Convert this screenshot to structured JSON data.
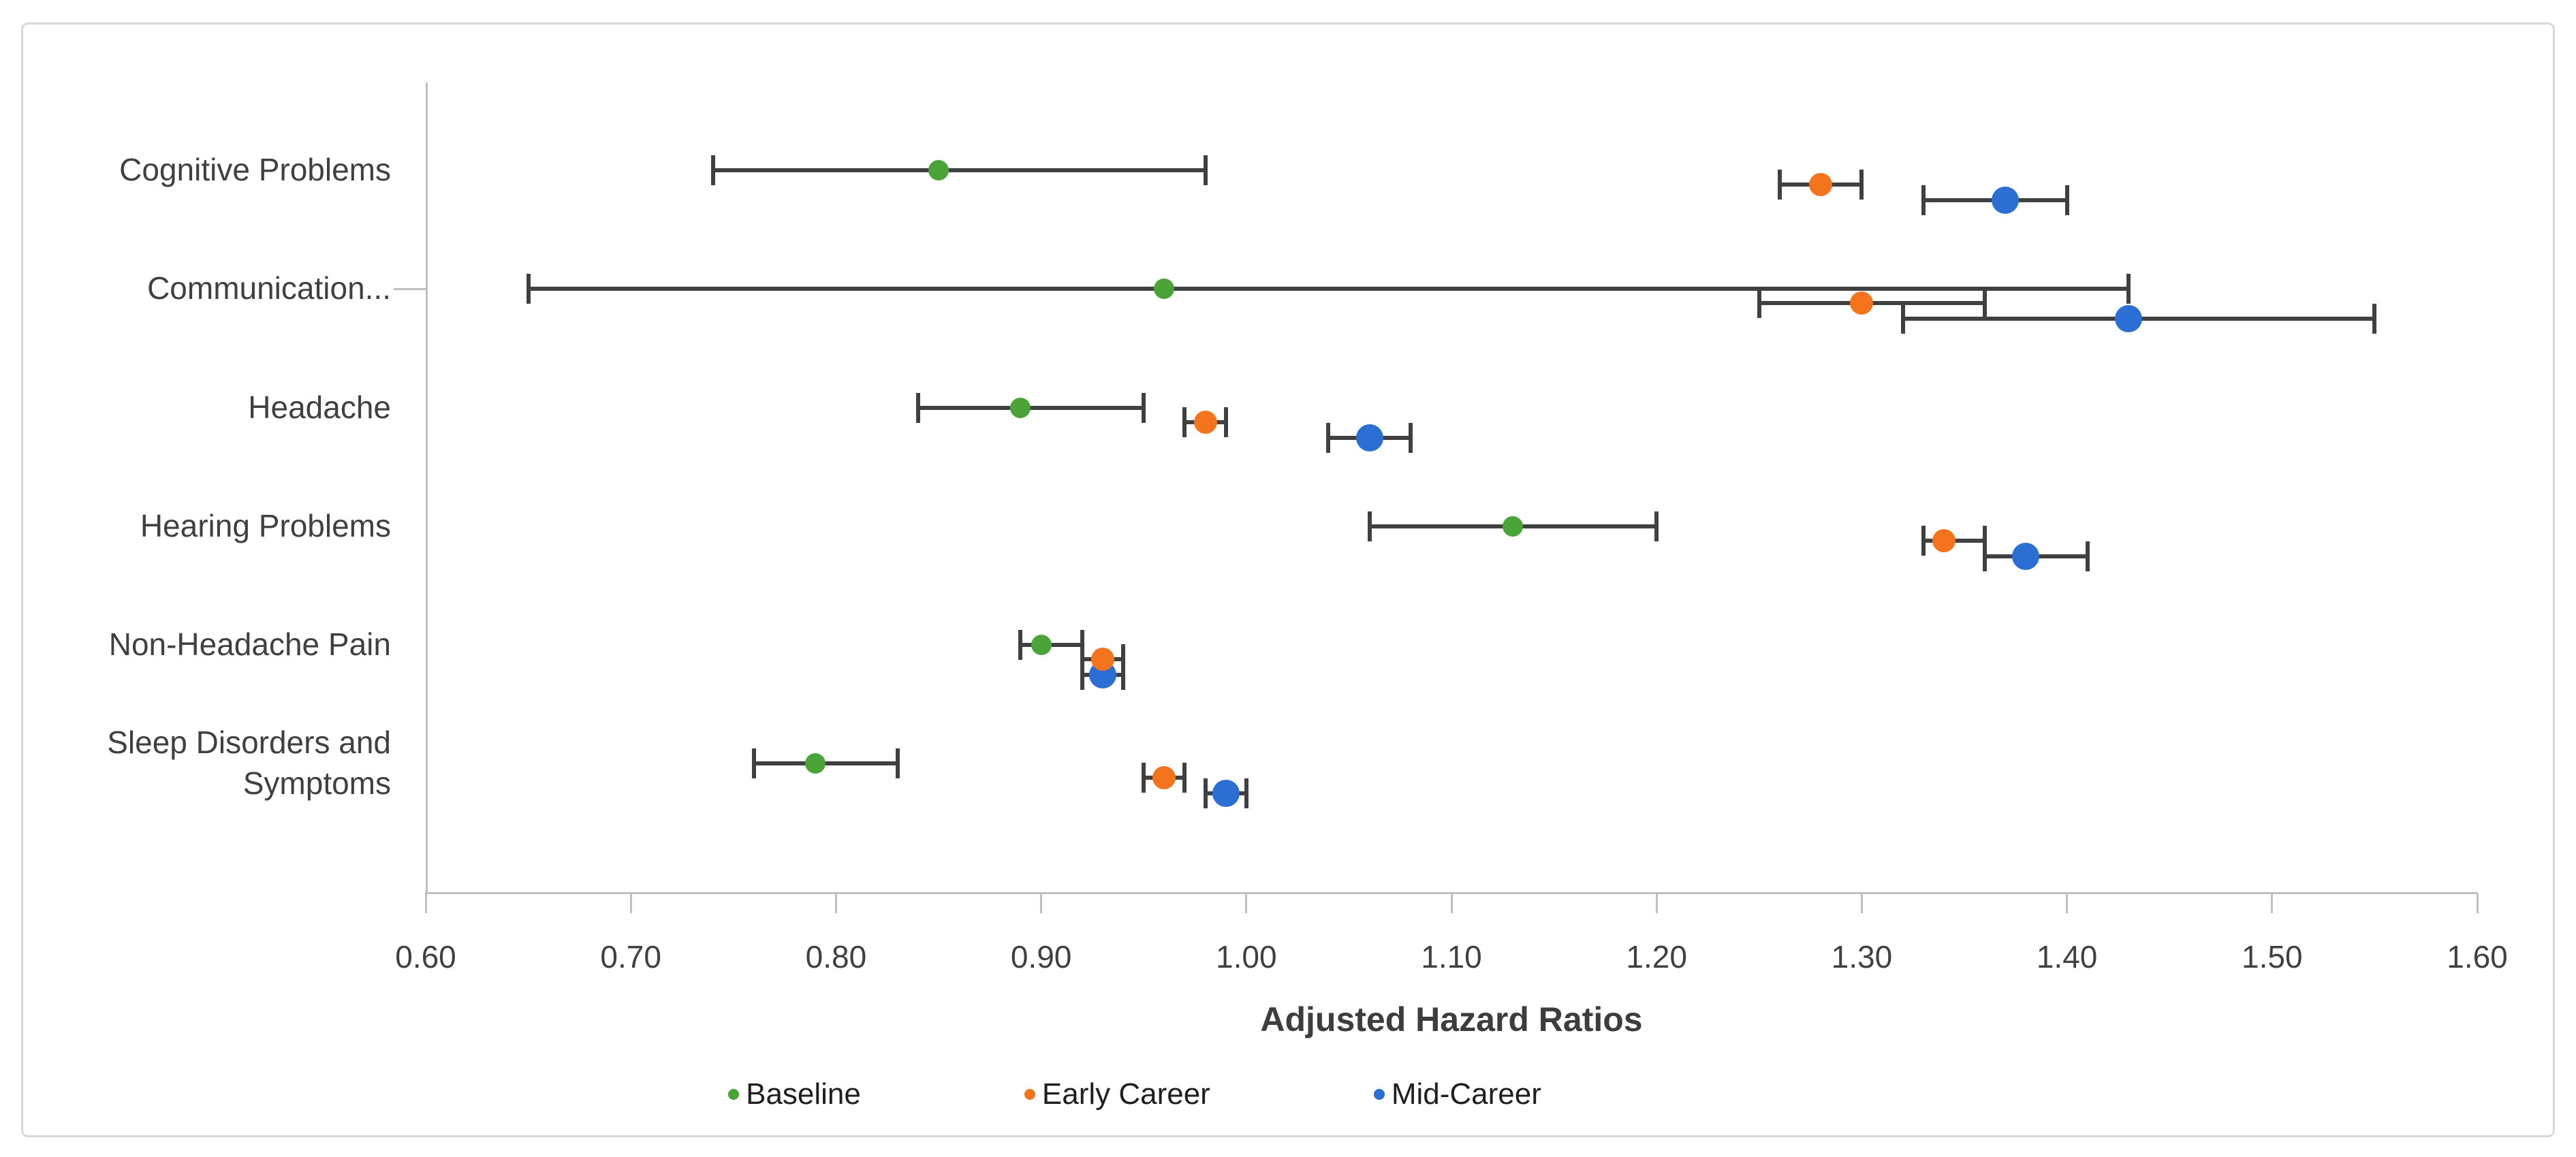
{
  "figure": {
    "background": "#ffffff",
    "border_color": "#d8d8d8"
  },
  "chart_data": {
    "type": "scatter",
    "subtype": "horizontal-forest-plot-with-error-bars",
    "title": "",
    "xlabel": "Adjusted Hazard Ratios",
    "ylabel": "",
    "xlim": [
      0.6,
      1.6
    ],
    "x_ticks": [
      "0.60",
      "0.70",
      "0.80",
      "0.90",
      "1.00",
      "1.10",
      "1.20",
      "1.30",
      "1.40",
      "1.50",
      "1.60"
    ],
    "grid": false,
    "legend_position": "bottom",
    "axis_color": "#bfbfbf",
    "errorbar_color": "#404040",
    "text_color": "#404040",
    "categories": [
      "Cognitive Problems",
      "Communication...",
      "Headache",
      "Hearing Problems",
      "Non-Headache Pain",
      "Sleep Disorders and Symptoms"
    ],
    "series": [
      {
        "name": "Baseline",
        "color": "#4aa437",
        "marker_px": 30,
        "points": [
          {
            "category": "Cognitive Problems",
            "value": 0.85,
            "ci_low": 0.74,
            "ci_high": 0.98
          },
          {
            "category": "Communication...",
            "value": 0.96,
            "ci_low": 0.65,
            "ci_high": 1.43
          },
          {
            "category": "Headache",
            "value": 0.89,
            "ci_low": 0.84,
            "ci_high": 0.95
          },
          {
            "category": "Hearing Problems",
            "value": 1.13,
            "ci_low": 1.06,
            "ci_high": 1.2
          },
          {
            "category": "Non-Headache Pain",
            "value": 0.9,
            "ci_low": 0.89,
            "ci_high": 0.92
          },
          {
            "category": "Sleep Disorders and Symptoms",
            "value": 0.79,
            "ci_low": 0.76,
            "ci_high": 0.83
          }
        ]
      },
      {
        "name": "Early Career",
        "color": "#f4741d",
        "marker_px": 34,
        "points": [
          {
            "category": "Cognitive Problems",
            "value": 1.28,
            "ci_low": 1.26,
            "ci_high": 1.3
          },
          {
            "category": "Communication...",
            "value": 1.3,
            "ci_low": 1.25,
            "ci_high": 1.36
          },
          {
            "category": "Headache",
            "value": 0.98,
            "ci_low": 0.97,
            "ci_high": 0.99
          },
          {
            "category": "Hearing Problems",
            "value": 1.34,
            "ci_low": 1.33,
            "ci_high": 1.36
          },
          {
            "category": "Non-Headache Pain",
            "value": 0.93,
            "ci_low": 0.92,
            "ci_high": 0.94
          },
          {
            "category": "Sleep Disorders and Symptoms",
            "value": 0.96,
            "ci_low": 0.95,
            "ci_high": 0.97
          }
        ]
      },
      {
        "name": "Mid-Career",
        "color": "#2b6fd4",
        "marker_px": 40,
        "points": [
          {
            "category": "Cognitive Problems",
            "value": 1.37,
            "ci_low": 1.33,
            "ci_high": 1.4
          },
          {
            "category": "Communication...",
            "value": 1.43,
            "ci_low": 1.32,
            "ci_high": 1.55
          },
          {
            "category": "Headache",
            "value": 1.06,
            "ci_low": 1.04,
            "ci_high": 1.08
          },
          {
            "category": "Hearing Problems",
            "value": 1.38,
            "ci_low": 1.36,
            "ci_high": 1.41
          },
          {
            "category": "Non-Headache Pain",
            "value": 0.93,
            "ci_low": 0.92,
            "ci_high": 0.94
          },
          {
            "category": "Sleep Disorders and Symptoms",
            "value": 0.99,
            "ci_low": 0.98,
            "ci_high": 1.0
          }
        ]
      }
    ]
  }
}
